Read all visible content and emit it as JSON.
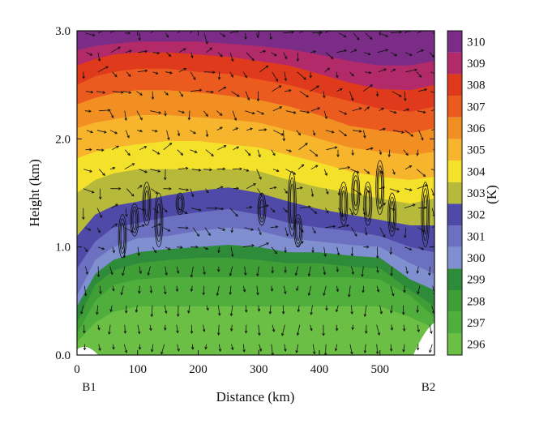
{
  "chart_data": {
    "type": "heatmap",
    "title": "",
    "xlabel": "Distance (km)",
    "ylabel": "Height (km)",
    "xlim": [
      0,
      590
    ],
    "ylim": [
      0,
      3.0
    ],
    "x_ticks": [
      0,
      100,
      200,
      300,
      400,
      500
    ],
    "x_tick_labels": [
      "0",
      "100",
      "200",
      "300",
      "400",
      "500"
    ],
    "y_ticks": [
      0,
      1,
      2,
      3
    ],
    "y_tick_labels": [
      "0.0",
      "1.0",
      "2.0",
      "3.0"
    ],
    "end_labels": [
      {
        "text": "B1",
        "x": 20
      },
      {
        "text": "B2",
        "x": 580
      }
    ],
    "colorbar": {
      "unit_label": "(K)",
      "levels": [
        296,
        297,
        298,
        299,
        300,
        301,
        302,
        303,
        304,
        305,
        306,
        307,
        308,
        309,
        310
      ],
      "labels": [
        "296",
        "297",
        "298",
        "299",
        "300",
        "301",
        "302",
        "303",
        "304",
        "305",
        "306",
        "307",
        "308",
        "309",
        "310"
      ],
      "colors": [
        "#6cbf45",
        "#4fae3c",
        "#3f9e36",
        "#2e8b3a",
        "#7f8fcf",
        "#6c70c0",
        "#4f4aa8",
        "#b6b93a",
        "#f4e12a",
        "#f6b52c",
        "#f28f22",
        "#eb5a1f",
        "#e03a1c",
        "#b22a6a",
        "#7a2c86"
      ]
    },
    "isotherm_heights_km": {
      "x": [
        0,
        30,
        60,
        100,
        150,
        200,
        250,
        300,
        350,
        400,
        450,
        500,
        550,
        590
      ],
      "296": [
        0.08,
        0.12,
        0.14,
        0.15,
        0.15,
        0.15,
        0.15,
        0.15,
        0.15,
        0.15,
        0.15,
        0.15,
        0.12,
        0.2
      ],
      "297": [
        0.12,
        0.3,
        0.4,
        0.45,
        0.45,
        0.45,
        0.45,
        0.45,
        0.45,
        0.45,
        0.45,
        0.45,
        0.35,
        0.25
      ],
      "298": [
        0.2,
        0.5,
        0.65,
        0.7,
        0.72,
        0.72,
        0.72,
        0.72,
        0.72,
        0.72,
        0.72,
        0.7,
        0.55,
        0.35
      ],
      "299": [
        0.3,
        0.65,
        0.78,
        0.85,
        0.88,
        0.9,
        0.9,
        0.88,
        0.85,
        0.85,
        0.82,
        0.8,
        0.6,
        0.45
      ],
      "300": [
        0.45,
        0.75,
        0.88,
        0.95,
        0.98,
        1.0,
        1.02,
        1.0,
        0.95,
        0.95,
        0.92,
        0.9,
        0.7,
        0.6
      ],
      "301": [
        0.55,
        0.88,
        1.0,
        1.08,
        1.1,
        1.15,
        1.18,
        1.15,
        1.08,
        1.05,
        1.02,
        1.0,
        0.85,
        0.75
      ],
      "302": [
        0.8,
        1.05,
        1.18,
        1.22,
        1.28,
        1.32,
        1.35,
        1.3,
        1.22,
        1.18,
        1.15,
        1.1,
        1.0,
        0.95
      ],
      "303": [
        1.1,
        1.3,
        1.38,
        1.42,
        1.48,
        1.52,
        1.55,
        1.5,
        1.42,
        1.35,
        1.3,
        1.25,
        1.2,
        1.2
      ],
      "304": [
        1.5,
        1.62,
        1.68,
        1.72,
        1.72,
        1.72,
        1.72,
        1.7,
        1.62,
        1.55,
        1.5,
        1.45,
        1.4,
        1.45
      ],
      "305": [
        1.82,
        1.88,
        1.92,
        1.95,
        1.98,
        1.98,
        1.95,
        1.92,
        1.85,
        1.78,
        1.7,
        1.65,
        1.62,
        1.65
      ],
      "306": [
        2.1,
        2.15,
        2.18,
        2.22,
        2.22,
        2.2,
        2.18,
        2.15,
        2.08,
        2.0,
        1.92,
        1.88,
        1.85,
        1.88
      ],
      "307": [
        2.32,
        2.38,
        2.42,
        2.45,
        2.45,
        2.43,
        2.4,
        2.36,
        2.3,
        2.22,
        2.12,
        2.08,
        2.05,
        2.1
      ],
      "308": [
        2.5,
        2.58,
        2.62,
        2.65,
        2.65,
        2.62,
        2.6,
        2.55,
        2.5,
        2.42,
        2.35,
        2.28,
        2.25,
        2.3
      ],
      "309": [
        2.68,
        2.74,
        2.78,
        2.8,
        2.8,
        2.78,
        2.76,
        2.72,
        2.68,
        2.6,
        2.52,
        2.46,
        2.45,
        2.5
      ],
      "310": [
        2.82,
        2.86,
        2.88,
        2.9,
        2.9,
        2.9,
        2.88,
        2.86,
        2.83,
        2.78,
        2.72,
        2.68,
        2.68,
        2.72
      ]
    },
    "wind_vectors": "arrows overlaid across domain (not numerically labeled)",
    "contours": "vertical black contour cells near x=60-140, 350-380, 430-520, 570-580 km"
  }
}
